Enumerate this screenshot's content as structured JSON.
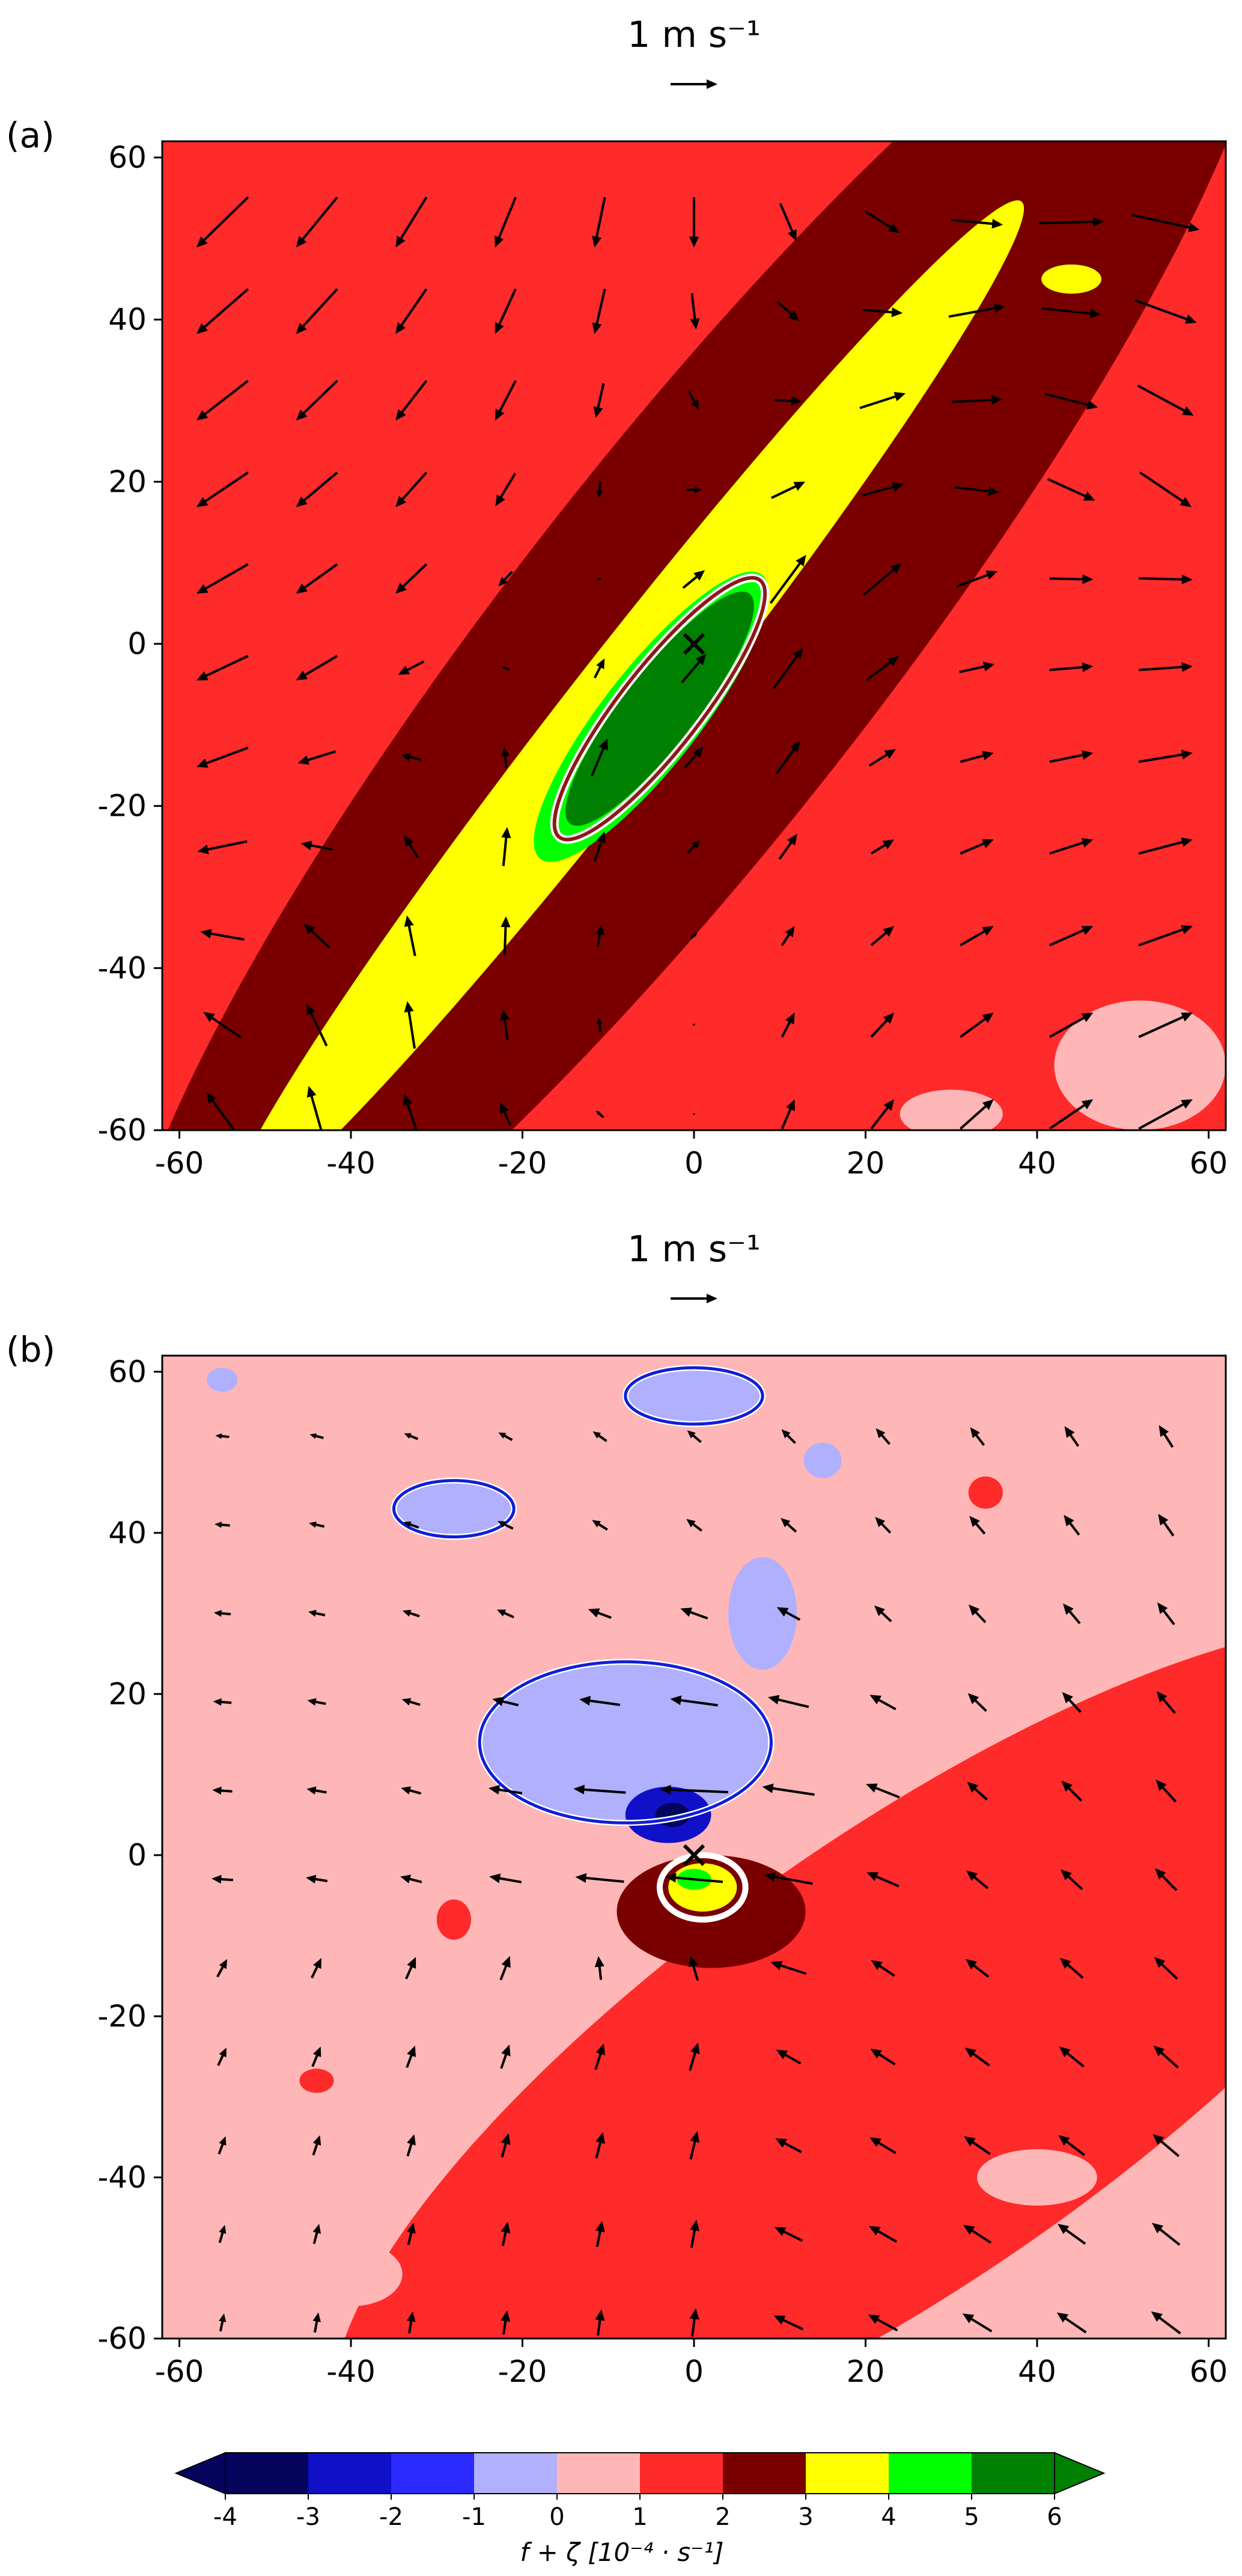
{
  "chart_data": [
    {
      "type": "heatmap",
      "panel_label": "(a)",
      "reference_vector": {
        "label": "1 m s⁻¹",
        "magnitude": 1
      },
      "xlim": [
        -62,
        62
      ],
      "ylim": [
        -60,
        62
      ],
      "x_ticks": [
        -60,
        -40,
        -20,
        0,
        20,
        40,
        60
      ],
      "y_ticks": [
        -60,
        -40,
        -20,
        0,
        20,
        40,
        60
      ],
      "background_value": 1.5,
      "bands": [
        {
          "value": 2.5,
          "center": [
            0,
            0
          ],
          "angle_deg": 52,
          "length": 210,
          "width": 46
        },
        {
          "value": 1.5,
          "center": [
            42,
            -48
          ],
          "angle_deg": 40,
          "length": 70,
          "width": 24
        },
        {
          "value": 3.5,
          "center": [
            -8,
            -8
          ],
          "angle_deg": 52,
          "length": 150,
          "width": 14
        },
        {
          "value": 4.5,
          "center": [
            -5,
            -9
          ],
          "angle_deg": 52,
          "length": 42,
          "width": 12
        },
        {
          "value": 5.5,
          "center": [
            -4,
            -8
          ],
          "angle_deg": 52,
          "length": 34,
          "width": 9
        }
      ],
      "blobs": [
        {
          "value": 3.5,
          "center": [
            44,
            45
          ],
          "rx": 3.5,
          "ry": 1.8
        },
        {
          "value": 0.5,
          "center": [
            52,
            -52
          ],
          "rx": 10,
          "ry": 8
        },
        {
          "value": 0.5,
          "center": [
            30,
            -58
          ],
          "rx": 6,
          "ry": 3
        }
      ],
      "contours": [
        {
          "level": 5,
          "center": [
            -4,
            -8
          ],
          "angle_deg": 52,
          "length": 38,
          "width": 10
        }
      ],
      "wind_field": {
        "x_start": -55,
        "y_start": -58,
        "spacing": 11,
        "count": 11
      },
      "center_marker": [
        0,
        0
      ]
    },
    {
      "type": "heatmap",
      "panel_label": "(b)",
      "reference_vector": {
        "label": "1 m s⁻¹",
        "magnitude": 1
      },
      "xlim": [
        -62,
        62
      ],
      "ylim": [
        -60,
        62
      ],
      "x_ticks": [
        -60,
        -40,
        -20,
        0,
        20,
        40,
        60
      ],
      "y_ticks": [
        -60,
        -40,
        -20,
        0,
        20,
        40,
        60
      ],
      "background_value": 0.5,
      "bands": [
        {
          "value": 1.5,
          "center": [
            25,
            -25
          ],
          "angle_deg": 35,
          "length": 160,
          "width": 55
        }
      ],
      "blobs": [
        {
          "value": -0.5,
          "center": [
            -8,
            14
          ],
          "rx": 17,
          "ry": 10
        },
        {
          "value": -0.5,
          "center": [
            8,
            30
          ],
          "rx": 4,
          "ry": 7
        },
        {
          "value": -0.5,
          "center": [
            -28,
            43
          ],
          "rx": 7,
          "ry": 3.5
        },
        {
          "value": -0.5,
          "center": [
            0,
            57
          ],
          "rx": 8,
          "ry": 3.5
        },
        {
          "value": -0.5,
          "center": [
            -55,
            59
          ],
          "rx": 1.8,
          "ry": 1.5
        },
        {
          "value": -0.5,
          "center": [
            15,
            49
          ],
          "rx": 2.2,
          "ry": 2.2
        },
        {
          "value": -2.5,
          "center": [
            -3,
            5
          ],
          "rx": 5,
          "ry": 3.5
        },
        {
          "value": -3.5,
          "center": [
            -2.5,
            5
          ],
          "rx": 2,
          "ry": 1.5
        },
        {
          "value": 0.5,
          "center": [
            40,
            -40
          ],
          "rx": 7,
          "ry": 3.5
        },
        {
          "value": 0.5,
          "center": [
            -40,
            -52
          ],
          "rx": 6,
          "ry": 4
        },
        {
          "value": 1.5,
          "center": [
            -28,
            -8
          ],
          "rx": 2,
          "ry": 2.5
        },
        {
          "value": 1.5,
          "center": [
            -44,
            -28
          ],
          "rx": 2,
          "ry": 1.5
        },
        {
          "value": 1.5,
          "center": [
            34,
            45
          ],
          "rx": 2,
          "ry": 2
        },
        {
          "value": 2.5,
          "center": [
            2,
            -7
          ],
          "rx": 11,
          "ry": 7
        },
        {
          "value": 3.5,
          "center": [
            1,
            -4
          ],
          "rx": 4,
          "ry": 3
        },
        {
          "value": 4.5,
          "center": [
            0,
            -3
          ],
          "rx": 2,
          "ry": 1.3
        }
      ],
      "contours": [
        {
          "level": -1,
          "center": [
            -8,
            14
          ],
          "rx": 17,
          "ry": 10,
          "color": "#0f1fd6"
        },
        {
          "level": -1,
          "center": [
            -28,
            43
          ],
          "rx": 7,
          "ry": 3.5,
          "color": "#0f1fd6"
        },
        {
          "level": -1,
          "center": [
            0,
            57
          ],
          "rx": 8,
          "ry": 3.5,
          "color": "#0f1fd6"
        },
        {
          "level": 3,
          "center": [
            1,
            -4
          ],
          "rx": 5,
          "ry": 4,
          "color": "#ffffff"
        }
      ],
      "wind_field": {
        "x_start": -55,
        "y_start": -58,
        "spacing": 11,
        "count": 11
      },
      "center_marker": [
        0,
        0
      ]
    }
  ],
  "colorbar": {
    "levels": [
      -4,
      -3,
      -2,
      -1,
      0,
      1,
      2,
      3,
      4,
      5,
      6
    ],
    "tick_labels": [
      "-4",
      "-3",
      "-2",
      "-1",
      "0",
      "1",
      "2",
      "3",
      "4",
      "5",
      "6"
    ],
    "colors": [
      "#05055e",
      "#1010c8",
      "#2a2aff",
      "#b0b0ff",
      "#ffb6b6",
      "#ff2a2a",
      "#7a0000",
      "#ffff00",
      "#00ff00",
      "#008000"
    ],
    "extend_min_color": "#05055e",
    "extend_max_color": "#008000",
    "title": "f + ζ [10⁻⁴ · s⁻¹]"
  }
}
